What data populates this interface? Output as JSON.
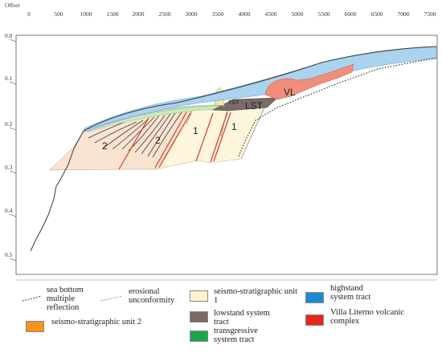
{
  "axis": {
    "top_title": "Offset",
    "x_ticks": [
      "0",
      "500",
      "1000",
      "1500",
      "2000",
      "2500",
      "3000",
      "3500",
      "4000",
      "4500",
      "5000",
      "5500",
      "6000",
      "6500",
      "7000",
      "7500"
    ],
    "y_ticks": [
      "0.0",
      "0.1",
      "0.2",
      "0.3",
      "0.4",
      "0.5"
    ]
  },
  "section_labels": {
    "vl": "VL",
    "lst": "LST",
    "tst": "TST",
    "unit2_a": "2",
    "unit2_b": "2",
    "unit1_a": "1",
    "unit1_b": "1"
  },
  "legend": {
    "sea_bottom": "sea bottom multiple reflection",
    "erosional": "erosional unconformity",
    "unit1": "seismo-stratigraphic unit 1",
    "lowstand": "lowstand system tract",
    "transgressive": "transgressive system tract",
    "highstand": "highstand system tract",
    "villa_literno": "Villa Literno volcanic complex",
    "unit2": "seismo-stratigraphic unit 2"
  },
  "colors": {
    "highstand": "#a9d3ee",
    "unit1": "#fdf6dc",
    "unit2": "#fae3d0",
    "lowstand": "#7a6a63",
    "transgressive": "#c8eab8",
    "villa_literno": "#ef8e7b",
    "tst_body": "#f0e9a8",
    "fault": "#d83a2a",
    "legend_highstand": "#1e88d0",
    "legend_unit1": "#fdf4cf",
    "legend_unit2": "#f7931e",
    "legend_lowstand": "#7a6a63",
    "legend_transgressive": "#1aa64a",
    "legend_villa_literno": "#e8261b"
  }
}
